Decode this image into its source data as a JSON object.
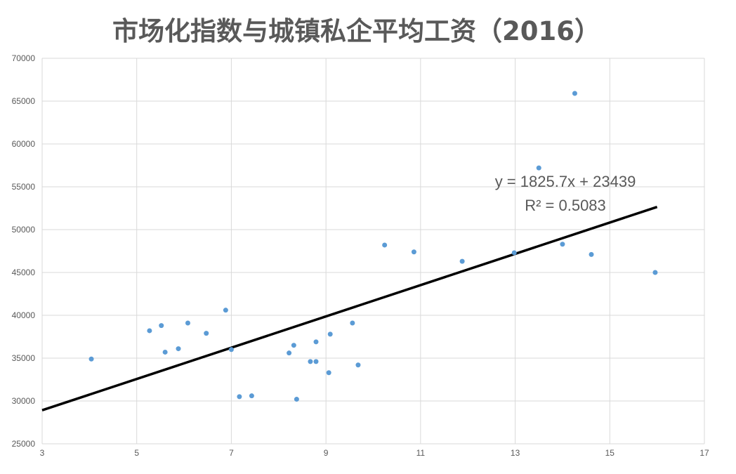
{
  "chart_data": {
    "type": "scatter",
    "title": "市场化指数与城镇私企平均工资（2016）",
    "xlabel": "",
    "ylabel": "",
    "xlim": [
      3,
      17
    ],
    "ylim": [
      25000,
      70000
    ],
    "x_ticks": [
      3,
      5,
      7,
      9,
      11,
      13,
      15,
      17
    ],
    "y_ticks": [
      25000,
      30000,
      35000,
      40000,
      45000,
      50000,
      55000,
      60000,
      65000,
      70000
    ],
    "grid": true,
    "point_color": "#5b9bd5",
    "trendline_color": "#000000",
    "points": [
      {
        "x": 4.04,
        "y": 34900
      },
      {
        "x": 5.27,
        "y": 38200
      },
      {
        "x": 5.52,
        "y": 38800
      },
      {
        "x": 5.6,
        "y": 35700
      },
      {
        "x": 5.88,
        "y": 36100
      },
      {
        "x": 6.08,
        "y": 39100
      },
      {
        "x": 6.47,
        "y": 37900
      },
      {
        "x": 6.88,
        "y": 40600
      },
      {
        "x": 7.0,
        "y": 36000
      },
      {
        "x": 7.17,
        "y": 30500
      },
      {
        "x": 7.43,
        "y": 30600
      },
      {
        "x": 8.22,
        "y": 35600
      },
      {
        "x": 8.32,
        "y": 36500
      },
      {
        "x": 8.38,
        "y": 30200
      },
      {
        "x": 8.67,
        "y": 34600
      },
      {
        "x": 8.79,
        "y": 34600
      },
      {
        "x": 8.79,
        "y": 36900
      },
      {
        "x": 9.06,
        "y": 33300
      },
      {
        "x": 9.09,
        "y": 37800
      },
      {
        "x": 9.56,
        "y": 39100
      },
      {
        "x": 9.68,
        "y": 34200
      },
      {
        "x": 10.24,
        "y": 48200
      },
      {
        "x": 10.86,
        "y": 47400
      },
      {
        "x": 11.88,
        "y": 46300
      },
      {
        "x": 12.98,
        "y": 47300
      },
      {
        "x": 13.5,
        "y": 57200
      },
      {
        "x": 14.0,
        "y": 48300
      },
      {
        "x": 14.26,
        "y": 65900
      },
      {
        "x": 14.61,
        "y": 47100
      },
      {
        "x": 15.96,
        "y": 45000
      }
    ],
    "trendline": {
      "slope": 1825.7,
      "intercept": 23439,
      "x_range": [
        3,
        16
      ],
      "equation_text": "y = 1825.7x + 23439",
      "r2_text": "R² = 0.5083"
    }
  }
}
